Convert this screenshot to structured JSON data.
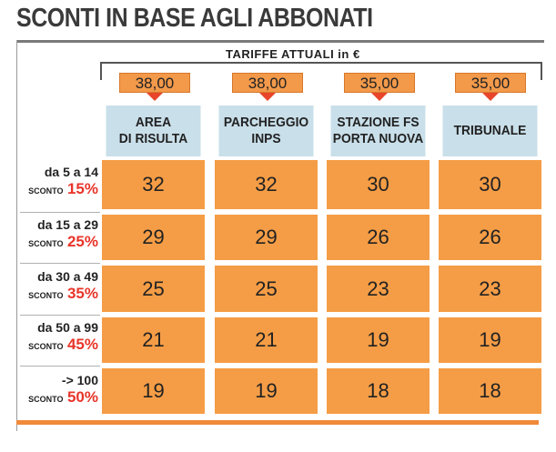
{
  "title": "SCONTI IN BASE AGLI ABBONATI",
  "subtitle": "TARIFFE ATTUALI in €",
  "columns": [
    {
      "line1": "AREA",
      "line2": "DI RISULTA",
      "price": "38,00"
    },
    {
      "line1": "PARCHEGGIO",
      "line2": "INPS",
      "price": "38,00"
    },
    {
      "line1": "STAZIONE FS",
      "line2": "PORTA NUOVA",
      "price": "35,00"
    },
    {
      "line1": "TRIBUNALE",
      "line2": "",
      "price": "35,00"
    }
  ],
  "sconto_label": "SCONTO",
  "rows": [
    {
      "range": "da 5 a 14",
      "discount": "15%",
      "values": [
        "32",
        "32",
        "30",
        "30"
      ]
    },
    {
      "range": "da 15 a 29",
      "discount": "25%",
      "values": [
        "29",
        "29",
        "26",
        "26"
      ]
    },
    {
      "range": "da 30 a 49",
      "discount": "35%",
      "values": [
        "25",
        "25",
        "23",
        "23"
      ]
    },
    {
      "range": "da 50 a 99",
      "discount": "45%",
      "values": [
        "21",
        "21",
        "19",
        "19"
      ]
    },
    {
      "range": "-> 100",
      "discount": "50%",
      "values": [
        "19",
        "19",
        "18",
        "18"
      ]
    }
  ],
  "colors": {
    "cell": "#f59d46",
    "header": "#c9dfea",
    "discount": "#e8352a"
  }
}
